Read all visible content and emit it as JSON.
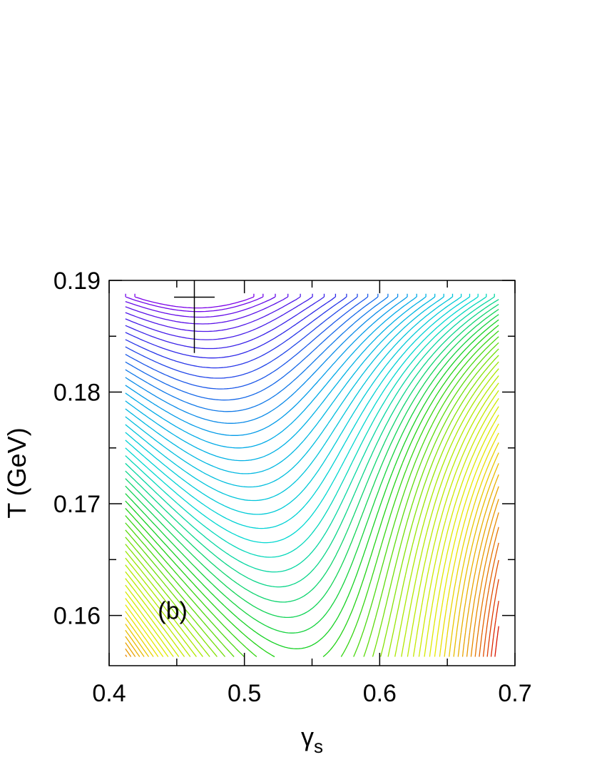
{
  "chart_data": {
    "type": "contour",
    "title": "",
    "xlabel": "γ",
    "xlabel_sub": "s",
    "ylabel": "T (GeV)",
    "xlim": [
      0.4,
      0.7
    ],
    "ylim": [
      0.1555,
      0.19
    ],
    "x_ticks": [
      0.4,
      0.5,
      0.6,
      0.7
    ],
    "x_tick_labels": [
      "0.4",
      "0.5",
      "0.6",
      "0.7"
    ],
    "y_ticks": [
      0.16,
      0.17,
      0.18,
      0.19
    ],
    "y_tick_labels": [
      "0.16",
      "0.17",
      "0.18",
      "0.19"
    ],
    "minimum": {
      "gamma_s": 0.463,
      "T": 0.1885
    },
    "minimum_error_bars": {
      "gamma_s": [
        0.448,
        0.478
      ],
      "T": [
        0.1835,
        0.1915
      ]
    },
    "annotation": "(b)",
    "annotation_at": {
      "gamma_s": 0.436,
      "T": 0.1597
    },
    "data_domain": {
      "gamma_s": [
        0.412,
        0.688
      ],
      "T": [
        0.1563,
        0.1888
      ]
    },
    "contour_levels": 60,
    "colormap": [
      "#7b00e8",
      "#2a2ae8",
      "#00a8e8",
      "#00d8d0",
      "#18d018",
      "#a8e800",
      "#e8e800",
      "#e89000",
      "#d80000"
    ],
    "grid": false,
    "legend": "none"
  }
}
